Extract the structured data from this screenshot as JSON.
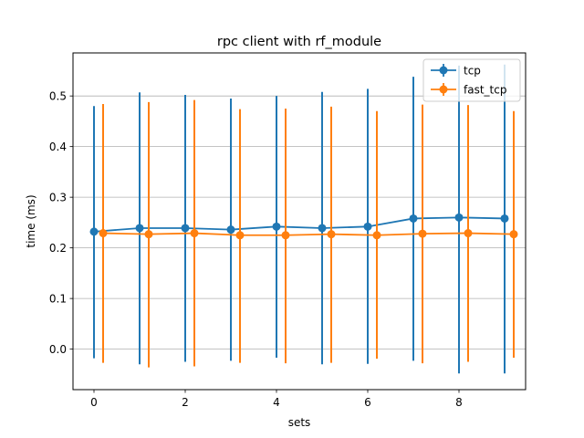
{
  "chart_data": {
    "type": "line",
    "title": "rpc client with rf_module",
    "xlabel": "sets",
    "ylabel": "time (ms)",
    "xlim": [
      -0.46,
      9.46
    ],
    "ylim": [
      -0.08,
      0.585
    ],
    "x_ticks": [
      0,
      2,
      4,
      6,
      8
    ],
    "y_ticks": [
      0.0,
      0.1,
      0.2,
      0.3,
      0.4,
      0.5
    ],
    "y_tick_labels": [
      "0.0",
      "0.1",
      "0.2",
      "0.3",
      "0.4",
      "0.5"
    ],
    "grid": "horizontal",
    "legend_position": "top-right",
    "series": [
      {
        "name": "tcp",
        "color": "#1f77b4",
        "x_offset": 0,
        "x": [
          0,
          1,
          2,
          3,
          4,
          5,
          6,
          7,
          8,
          9
        ],
        "y": [
          0.232,
          0.239,
          0.239,
          0.236,
          0.242,
          0.239,
          0.242,
          0.258,
          0.26,
          0.258
        ],
        "err_low": [
          -0.018,
          -0.03,
          -0.025,
          -0.023,
          -0.017,
          -0.03,
          -0.029,
          -0.023,
          -0.048,
          -0.048
        ],
        "err_high": [
          0.48,
          0.507,
          0.502,
          0.495,
          0.5,
          0.508,
          0.514,
          0.538,
          0.56,
          0.562
        ]
      },
      {
        "name": "fast_tcp",
        "color": "#ff7f0e",
        "x_offset": 0.2,
        "x": [
          0,
          1,
          2,
          3,
          4,
          5,
          6,
          7,
          8,
          9
        ],
        "y": [
          0.229,
          0.227,
          0.229,
          0.225,
          0.225,
          0.227,
          0.225,
          0.228,
          0.229,
          0.227
        ],
        "err_low": [
          -0.027,
          -0.036,
          -0.034,
          -0.027,
          -0.028,
          -0.027,
          -0.019,
          -0.028,
          -0.025,
          -0.017
        ],
        "err_high": [
          0.484,
          0.488,
          0.492,
          0.474,
          0.475,
          0.479,
          0.47,
          0.483,
          0.482,
          0.47
        ]
      }
    ]
  }
}
